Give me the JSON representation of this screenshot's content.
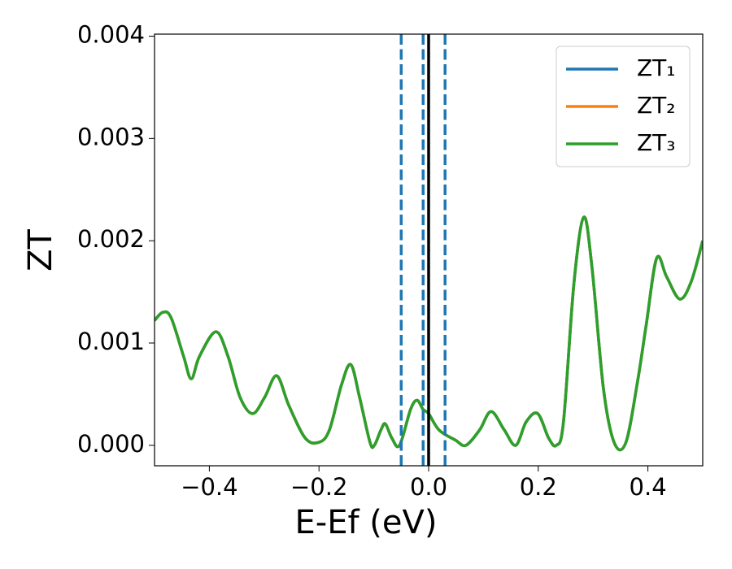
{
  "chart_data": {
    "type": "line",
    "x_label": "E-Ef (eV)",
    "y_label": "ZT",
    "x": [
      -0.5,
      -0.485,
      -0.47,
      -0.447,
      -0.433,
      -0.418,
      -0.388,
      -0.366,
      -0.344,
      -0.321,
      -0.299,
      -0.277,
      -0.255,
      -0.225,
      -0.2,
      -0.181,
      -0.159,
      -0.142,
      -0.126,
      -0.107,
      -0.099,
      -0.087,
      -0.079,
      -0.067,
      -0.053,
      -0.033,
      -0.021,
      -0.01,
      0.0,
      0.019,
      0.049,
      0.068,
      0.093,
      0.114,
      0.138,
      0.159,
      0.178,
      0.199,
      0.219,
      0.233,
      0.246,
      0.265,
      0.283,
      0.298,
      0.319,
      0.339,
      0.36,
      0.381,
      0.397,
      0.416,
      0.434,
      0.458,
      0.479,
      0.5
    ],
    "series": [
      {
        "name": "ZT₁",
        "color": "#1f77b4",
        "values": [
          0.00122,
          0.0013,
          0.00125,
          0.00087,
          0.00065,
          0.00087,
          0.00111,
          0.00087,
          0.00047,
          0.00031,
          0.00047,
          0.00068,
          0.00039,
          7e-05,
          3e-05,
          0.00015,
          0.00059,
          0.00079,
          0.00047,
          3e-05,
          0.0,
          0.00015,
          0.00021,
          7e-05,
          0.0,
          0.00035,
          0.00044,
          0.00035,
          0.00031,
          0.00015,
          5e-05,
          0.0,
          0.00015,
          0.00033,
          0.00015,
          0.0,
          0.00023,
          0.00031,
          7e-05,
          0.0,
          0.00023,
          0.00158,
          0.00223,
          0.00174,
          0.00055,
          2e-05,
          3e-05,
          0.00062,
          0.00118,
          0.00183,
          0.00165,
          0.00143,
          0.0016,
          0.002
        ]
      },
      {
        "name": "ZT₂",
        "color": "#ff7f0e",
        "values": [
          0.00122,
          0.0013,
          0.00125,
          0.00087,
          0.00065,
          0.00087,
          0.00111,
          0.00087,
          0.00047,
          0.00031,
          0.00047,
          0.00068,
          0.00039,
          7e-05,
          3e-05,
          0.00015,
          0.00059,
          0.00079,
          0.00047,
          3e-05,
          0.0,
          0.00015,
          0.00021,
          7e-05,
          0.0,
          0.00035,
          0.00044,
          0.00035,
          0.00031,
          0.00015,
          5e-05,
          0.0,
          0.00015,
          0.00033,
          0.00015,
          0.0,
          0.00023,
          0.00031,
          7e-05,
          0.0,
          0.00023,
          0.00158,
          0.00223,
          0.00174,
          0.00055,
          2e-05,
          3e-05,
          0.00062,
          0.00118,
          0.00183,
          0.00165,
          0.00143,
          0.0016,
          0.002
        ]
      },
      {
        "name": "ZT₃",
        "color": "#2ca02c",
        "values": [
          0.00122,
          0.0013,
          0.00125,
          0.00087,
          0.00065,
          0.00087,
          0.00111,
          0.00087,
          0.00047,
          0.00031,
          0.00047,
          0.00068,
          0.00039,
          7e-05,
          3e-05,
          0.00015,
          0.00059,
          0.00079,
          0.00047,
          3e-05,
          0.0,
          0.00015,
          0.00021,
          7e-05,
          0.0,
          0.00035,
          0.00044,
          0.00035,
          0.00031,
          0.00015,
          5e-05,
          0.0,
          0.00015,
          0.00033,
          0.00015,
          0.0,
          0.00023,
          0.00031,
          7e-05,
          0.0,
          0.00023,
          0.00158,
          0.00223,
          0.00174,
          0.00055,
          2e-05,
          3e-05,
          0.00062,
          0.00118,
          0.00183,
          0.00165,
          0.00143,
          0.0016,
          0.002
        ]
      }
    ],
    "vlines": [
      {
        "x": -0.05,
        "color": "#1f77b4",
        "dashed": true
      },
      {
        "x": -0.01,
        "color": "#1f77b4",
        "dashed": true
      },
      {
        "x": 0.03,
        "color": "#1f77b4",
        "dashed": true
      },
      {
        "x": 0.0,
        "color": "#000000",
        "dashed": false
      }
    ],
    "xlim": [
      -0.5,
      0.5
    ],
    "ylim": [
      -0.0002,
      0.00402
    ],
    "xticks": [
      {
        "value": -0.4,
        "label": "−0.4"
      },
      {
        "value": -0.2,
        "label": "−0.2"
      },
      {
        "value": 0.0,
        "label": "0.0"
      },
      {
        "value": 0.2,
        "label": "0.2"
      },
      {
        "value": 0.4,
        "label": "0.4"
      }
    ],
    "yticks": [
      {
        "value": 0.0,
        "label": "0.000"
      },
      {
        "value": 0.001,
        "label": "0.001"
      },
      {
        "value": 0.002,
        "label": "0.002"
      },
      {
        "value": 0.003,
        "label": "0.003"
      },
      {
        "value": 0.004,
        "label": "0.004"
      }
    ],
    "grid": false,
    "legend": "upper right"
  }
}
